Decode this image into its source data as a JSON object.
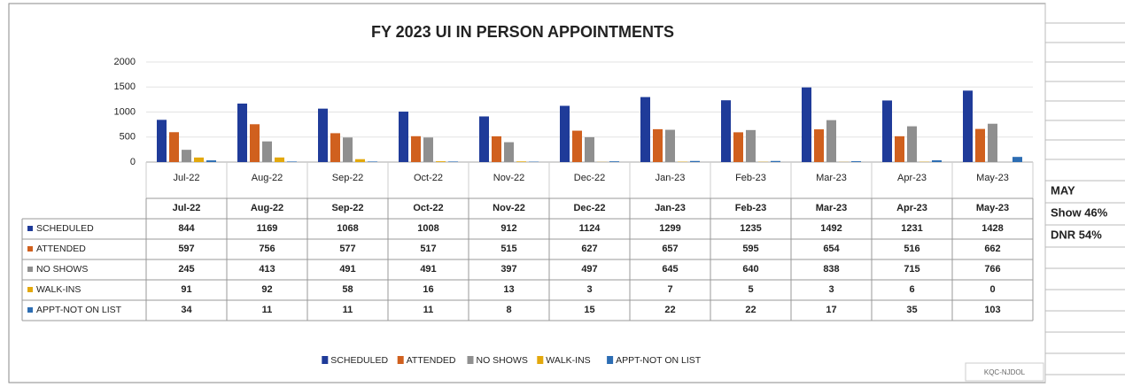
{
  "chart_data": {
    "type": "bar",
    "title": "FY 2023 UI IN PERSON APPOINTMENTS",
    "categories": [
      "Jul-22",
      "Aug-22",
      "Sep-22",
      "Oct-22",
      "Nov-22",
      "Dec-22",
      "Jan-23",
      "Feb-23",
      "Mar-23",
      "Apr-23",
      "May-23"
    ],
    "series": [
      {
        "name": "SCHEDULED",
        "color": "#1f3b99",
        "values": [
          844,
          1169,
          1068,
          1008,
          912,
          1124,
          1299,
          1235,
          1492,
          1231,
          1428
        ]
      },
      {
        "name": "ATTENDED",
        "color": "#d0601e",
        "values": [
          597,
          756,
          577,
          517,
          515,
          627,
          657,
          595,
          654,
          516,
          662
        ]
      },
      {
        "name": "NO SHOWS",
        "color": "#8f8f8f",
        "values": [
          245,
          413,
          491,
          491,
          397,
          497,
          645,
          640,
          838,
          715,
          766
        ]
      },
      {
        "name": "WALK-INS",
        "color": "#e3a80c",
        "values": [
          91,
          92,
          58,
          16,
          13,
          3,
          7,
          5,
          3,
          6,
          0
        ]
      },
      {
        "name": "APPT-NOT ON LIST",
        "color": "#2c6db3",
        "values": [
          34,
          11,
          11,
          11,
          8,
          15,
          22,
          22,
          17,
          35,
          103
        ]
      }
    ],
    "ylim": [
      0,
      2000
    ],
    "yticks": [
      0,
      500,
      1000,
      1500,
      2000
    ],
    "grid": true,
    "data_table": true,
    "legend": "bottom"
  },
  "side_panel": {
    "title": "MAY",
    "rows": [
      "Show 46%",
      "DNR 54%"
    ]
  },
  "footer": "KQC-NJDOL"
}
